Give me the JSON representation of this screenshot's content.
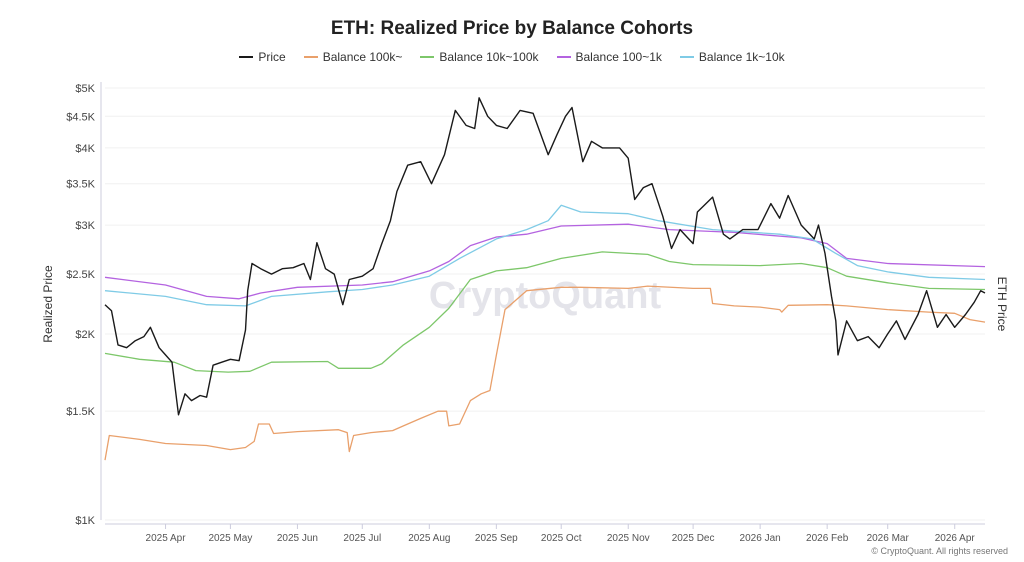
{
  "chart_data": {
    "type": "line",
    "title": "ETH: Realized Price by Balance Cohorts",
    "ylabel": "Realized Price",
    "y2label": "ETH Price",
    "yscale": "log",
    "ylim": [
      1000,
      5000
    ],
    "xlim": [
      "2025-03-04",
      "2026-04-15"
    ],
    "grid": true,
    "legend": "top",
    "watermark": "CryptoQuant",
    "credit": "© CryptoQuant. All rights reserved",
    "y_ticks": [
      {
        "v": 1000,
        "label": "$1K"
      },
      {
        "v": 1500,
        "label": "$1.5K"
      },
      {
        "v": 2000,
        "label": "$2K"
      },
      {
        "v": 2500,
        "label": "$2.5K"
      },
      {
        "v": 3000,
        "label": "$3K"
      },
      {
        "v": 3500,
        "label": "$3.5K"
      },
      {
        "v": 4000,
        "label": "$4K"
      },
      {
        "v": 4500,
        "label": "$4.5K"
      },
      {
        "v": 5000,
        "label": "$5K"
      }
    ],
    "x_ticks": [
      {
        "d": "2025-04-01",
        "label": "2025 Apr"
      },
      {
        "d": "2025-05-01",
        "label": "2025 May"
      },
      {
        "d": "2025-06-01",
        "label": "2025 Jun"
      },
      {
        "d": "2025-07-01",
        "label": "2025 Jul"
      },
      {
        "d": "2025-08-01",
        "label": "2025 Aug"
      },
      {
        "d": "2025-09-01",
        "label": "2025 Sep"
      },
      {
        "d": "2025-10-01",
        "label": "2025 Oct"
      },
      {
        "d": "2025-11-01",
        "label": "2025 Nov"
      },
      {
        "d": "2025-12-01",
        "label": "2025 Dec"
      },
      {
        "d": "2026-01-01",
        "label": "2026 Jan"
      },
      {
        "d": "2026-02-01",
        "label": "2026 Feb"
      },
      {
        "d": "2026-03-01",
        "label": "2026 Mar"
      },
      {
        "d": "2026-04-01",
        "label": "2026 Apr"
      }
    ],
    "series": [
      {
        "name": "Price",
        "color": "#1a1a1a",
        "points": [
          [
            "2025-03-04",
            2230
          ],
          [
            "2025-03-07",
            2180
          ],
          [
            "2025-03-10",
            1920
          ],
          [
            "2025-03-14",
            1900
          ],
          [
            "2025-03-18",
            1950
          ],
          [
            "2025-03-22",
            1980
          ],
          [
            "2025-03-25",
            2050
          ],
          [
            "2025-03-29",
            1900
          ],
          [
            "2025-04-01",
            1850
          ],
          [
            "2025-04-04",
            1800
          ],
          [
            "2025-04-07",
            1480
          ],
          [
            "2025-04-10",
            1600
          ],
          [
            "2025-04-13",
            1560
          ],
          [
            "2025-04-17",
            1590
          ],
          [
            "2025-04-20",
            1580
          ],
          [
            "2025-04-23",
            1780
          ],
          [
            "2025-04-27",
            1800
          ],
          [
            "2025-05-01",
            1820
          ],
          [
            "2025-05-05",
            1810
          ],
          [
            "2025-05-08",
            2030
          ],
          [
            "2025-05-09",
            2350
          ],
          [
            "2025-05-11",
            2600
          ],
          [
            "2025-05-15",
            2550
          ],
          [
            "2025-05-20",
            2500
          ],
          [
            "2025-05-25",
            2550
          ],
          [
            "2025-05-30",
            2560
          ],
          [
            "2025-06-04",
            2600
          ],
          [
            "2025-06-07",
            2450
          ],
          [
            "2025-06-10",
            2810
          ],
          [
            "2025-06-14",
            2550
          ],
          [
            "2025-06-18",
            2500
          ],
          [
            "2025-06-22",
            2230
          ],
          [
            "2025-06-25",
            2450
          ],
          [
            "2025-07-01",
            2480
          ],
          [
            "2025-07-06",
            2550
          ],
          [
            "2025-07-10",
            2800
          ],
          [
            "2025-07-14",
            3050
          ],
          [
            "2025-07-17",
            3400
          ],
          [
            "2025-07-22",
            3750
          ],
          [
            "2025-07-28",
            3800
          ],
          [
            "2025-08-02",
            3500
          ],
          [
            "2025-08-08",
            3900
          ],
          [
            "2025-08-13",
            4600
          ],
          [
            "2025-08-18",
            4350
          ],
          [
            "2025-08-22",
            4300
          ],
          [
            "2025-08-24",
            4820
          ],
          [
            "2025-08-28",
            4500
          ],
          [
            "2025-09-01",
            4350
          ],
          [
            "2025-09-06",
            4300
          ],
          [
            "2025-09-12",
            4600
          ],
          [
            "2025-09-18",
            4550
          ],
          [
            "2025-09-25",
            3900
          ],
          [
            "2025-09-29",
            4200
          ],
          [
            "2025-10-03",
            4500
          ],
          [
            "2025-10-06",
            4650
          ],
          [
            "2025-10-11",
            3800
          ],
          [
            "2025-10-15",
            4100
          ],
          [
            "2025-10-20",
            4000
          ],
          [
            "2025-10-28",
            4000
          ],
          [
            "2025-11-01",
            3850
          ],
          [
            "2025-11-04",
            3300
          ],
          [
            "2025-11-08",
            3450
          ],
          [
            "2025-11-12",
            3500
          ],
          [
            "2025-11-17",
            3100
          ],
          [
            "2025-11-21",
            2750
          ],
          [
            "2025-11-25",
            2950
          ],
          [
            "2025-12-01",
            2800
          ],
          [
            "2025-12-03",
            3150
          ],
          [
            "2025-12-10",
            3330
          ],
          [
            "2025-12-15",
            2900
          ],
          [
            "2025-12-18",
            2850
          ],
          [
            "2025-12-24",
            2950
          ],
          [
            "2025-12-31",
            2950
          ],
          [
            "2026-01-06",
            3250
          ],
          [
            "2026-01-10",
            3080
          ],
          [
            "2026-01-14",
            3350
          ],
          [
            "2026-01-20",
            3000
          ],
          [
            "2026-01-26",
            2850
          ],
          [
            "2026-01-28",
            3000
          ],
          [
            "2026-01-31",
            2700
          ],
          [
            "2026-02-03",
            2300
          ],
          [
            "2026-02-05",
            2100
          ],
          [
            "2026-02-06",
            1850
          ],
          [
            "2026-02-10",
            2100
          ],
          [
            "2026-02-15",
            1950
          ],
          [
            "2026-02-20",
            1980
          ],
          [
            "2026-02-25",
            1900
          ],
          [
            "2026-03-01",
            2000
          ],
          [
            "2026-03-05",
            2100
          ],
          [
            "2026-03-09",
            1960
          ],
          [
            "2026-03-15",
            2150
          ],
          [
            "2026-03-19",
            2350
          ],
          [
            "2026-03-24",
            2050
          ],
          [
            "2026-03-28",
            2150
          ],
          [
            "2026-04-01",
            2050
          ],
          [
            "2026-04-06",
            2150
          ],
          [
            "2026-04-10",
            2250
          ],
          [
            "2026-04-13",
            2350
          ],
          [
            "2026-04-15",
            2330
          ]
        ]
      },
      {
        "name": "Balance 100k~",
        "color": "#e9a06b",
        "points": [
          [
            "2025-03-04",
            1250
          ],
          [
            "2025-03-06",
            1370
          ],
          [
            "2025-03-20",
            1350
          ],
          [
            "2025-04-01",
            1330
          ],
          [
            "2025-04-20",
            1320
          ],
          [
            "2025-05-01",
            1300
          ],
          [
            "2025-05-08",
            1310
          ],
          [
            "2025-05-12",
            1340
          ],
          [
            "2025-05-14",
            1430
          ],
          [
            "2025-05-19",
            1430
          ],
          [
            "2025-05-21",
            1380
          ],
          [
            "2025-06-01",
            1390
          ],
          [
            "2025-06-20",
            1400
          ],
          [
            "2025-06-24",
            1385
          ],
          [
            "2025-06-25",
            1290
          ],
          [
            "2025-06-27",
            1370
          ],
          [
            "2025-07-05",
            1385
          ],
          [
            "2025-07-15",
            1395
          ],
          [
            "2025-07-20",
            1420
          ],
          [
            "2025-07-28",
            1460
          ],
          [
            "2025-08-05",
            1500
          ],
          [
            "2025-08-09",
            1500
          ],
          [
            "2025-08-10",
            1420
          ],
          [
            "2025-08-15",
            1430
          ],
          [
            "2025-08-20",
            1560
          ],
          [
            "2025-08-25",
            1600
          ],
          [
            "2025-08-29",
            1620
          ],
          [
            "2025-09-01",
            1850
          ],
          [
            "2025-09-05",
            2190
          ],
          [
            "2025-09-15",
            2350
          ],
          [
            "2025-10-01",
            2380
          ],
          [
            "2025-10-10",
            2380
          ],
          [
            "2025-11-01",
            2370
          ],
          [
            "2025-11-10",
            2390
          ],
          [
            "2025-12-01",
            2370
          ],
          [
            "2025-12-09",
            2370
          ],
          [
            "2025-12-10",
            2240
          ],
          [
            "2025-12-20",
            2220
          ],
          [
            "2026-01-01",
            2210
          ],
          [
            "2026-01-10",
            2190
          ],
          [
            "2026-01-11",
            2170
          ],
          [
            "2026-01-14",
            2225
          ],
          [
            "2026-02-01",
            2230
          ],
          [
            "2026-02-10",
            2220
          ],
          [
            "2026-03-01",
            2190
          ],
          [
            "2026-03-20",
            2170
          ],
          [
            "2026-04-01",
            2160
          ],
          [
            "2026-04-08",
            2110
          ],
          [
            "2026-04-15",
            2090
          ]
        ]
      },
      {
        "name": "Balance 10k~100k",
        "color": "#7dc76a",
        "points": [
          [
            "2025-03-04",
            1860
          ],
          [
            "2025-03-20",
            1820
          ],
          [
            "2025-04-05",
            1800
          ],
          [
            "2025-04-15",
            1745
          ],
          [
            "2025-04-30",
            1735
          ],
          [
            "2025-05-10",
            1740
          ],
          [
            "2025-05-20",
            1800
          ],
          [
            "2025-06-15",
            1805
          ],
          [
            "2025-06-20",
            1760
          ],
          [
            "2025-07-05",
            1760
          ],
          [
            "2025-07-10",
            1790
          ],
          [
            "2025-07-20",
            1920
          ],
          [
            "2025-08-01",
            2050
          ],
          [
            "2025-08-10",
            2200
          ],
          [
            "2025-08-20",
            2450
          ],
          [
            "2025-09-01",
            2530
          ],
          [
            "2025-09-15",
            2560
          ],
          [
            "2025-10-01",
            2650
          ],
          [
            "2025-10-20",
            2715
          ],
          [
            "2025-11-10",
            2690
          ],
          [
            "2025-11-20",
            2620
          ],
          [
            "2025-12-01",
            2590
          ],
          [
            "2026-01-01",
            2580
          ],
          [
            "2026-01-20",
            2600
          ],
          [
            "2026-02-01",
            2560
          ],
          [
            "2026-02-10",
            2480
          ],
          [
            "2026-03-01",
            2420
          ],
          [
            "2026-03-20",
            2370
          ],
          [
            "2026-04-15",
            2360
          ]
        ]
      },
      {
        "name": "Balance 100~1k",
        "color": "#b463e0",
        "points": [
          [
            "2025-03-04",
            2470
          ],
          [
            "2025-04-01",
            2400
          ],
          [
            "2025-04-20",
            2300
          ],
          [
            "2025-05-05",
            2280
          ],
          [
            "2025-05-15",
            2330
          ],
          [
            "2025-06-01",
            2380
          ],
          [
            "2025-07-01",
            2400
          ],
          [
            "2025-07-15",
            2430
          ],
          [
            "2025-08-01",
            2530
          ],
          [
            "2025-08-10",
            2620
          ],
          [
            "2025-08-20",
            2780
          ],
          [
            "2025-09-01",
            2870
          ],
          [
            "2025-09-15",
            2900
          ],
          [
            "2025-10-01",
            2990
          ],
          [
            "2025-11-01",
            3010
          ],
          [
            "2025-11-20",
            2950
          ],
          [
            "2025-12-20",
            2920
          ],
          [
            "2026-01-20",
            2860
          ],
          [
            "2026-02-01",
            2800
          ],
          [
            "2026-02-10",
            2650
          ],
          [
            "2026-03-01",
            2600
          ],
          [
            "2026-04-15",
            2570
          ]
        ]
      },
      {
        "name": "Balance 1k~10k",
        "color": "#7fcbe6",
        "points": [
          [
            "2025-03-04",
            2350
          ],
          [
            "2025-04-01",
            2300
          ],
          [
            "2025-04-20",
            2230
          ],
          [
            "2025-05-08",
            2220
          ],
          [
            "2025-05-20",
            2300
          ],
          [
            "2025-06-15",
            2340
          ],
          [
            "2025-07-01",
            2360
          ],
          [
            "2025-07-15",
            2400
          ],
          [
            "2025-08-01",
            2480
          ],
          [
            "2025-08-15",
            2650
          ],
          [
            "2025-09-01",
            2850
          ],
          [
            "2025-09-15",
            2950
          ],
          [
            "2025-09-25",
            3050
          ],
          [
            "2025-10-01",
            3230
          ],
          [
            "2025-10-10",
            3150
          ],
          [
            "2025-11-01",
            3130
          ],
          [
            "2025-11-15",
            3050
          ],
          [
            "2025-12-10",
            2950
          ],
          [
            "2026-01-10",
            2900
          ],
          [
            "2026-01-25",
            2850
          ],
          [
            "2026-02-05",
            2700
          ],
          [
            "2026-02-15",
            2580
          ],
          [
            "2026-03-01",
            2520
          ],
          [
            "2026-03-20",
            2470
          ],
          [
            "2026-04-15",
            2450
          ]
        ]
      }
    ]
  }
}
